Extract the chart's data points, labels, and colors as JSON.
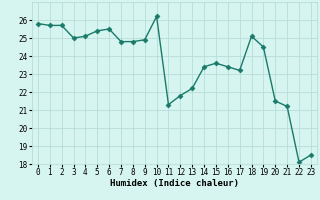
{
  "x": [
    0,
    1,
    2,
    3,
    4,
    5,
    6,
    7,
    8,
    9,
    10,
    11,
    12,
    13,
    14,
    15,
    16,
    17,
    18,
    19,
    20,
    21,
    22,
    23
  ],
  "y": [
    25.8,
    25.7,
    25.7,
    25.0,
    25.1,
    25.4,
    25.5,
    24.8,
    24.8,
    24.9,
    26.2,
    21.3,
    21.8,
    22.2,
    23.4,
    23.6,
    23.4,
    23.2,
    25.1,
    24.5,
    21.5,
    21.2,
    18.1,
    18.5
  ],
  "xlabel": "Humidex (Indice chaleur)",
  "ylim": [
    18,
    27
  ],
  "xlim": [
    -0.5,
    23.5
  ],
  "yticks": [
    18,
    19,
    20,
    21,
    22,
    23,
    24,
    25,
    26
  ],
  "xticks": [
    0,
    1,
    2,
    3,
    4,
    5,
    6,
    7,
    8,
    9,
    10,
    11,
    12,
    13,
    14,
    15,
    16,
    17,
    18,
    19,
    20,
    21,
    22,
    23
  ],
  "line_color": "#1a7a6a",
  "bg_color": "#d6f5f0",
  "grid_color": "#b8ddd8",
  "marker": "D",
  "marker_size": 2.5,
  "line_width": 1.0,
  "xlabel_fontsize": 6.5,
  "tick_fontsize": 5.5
}
